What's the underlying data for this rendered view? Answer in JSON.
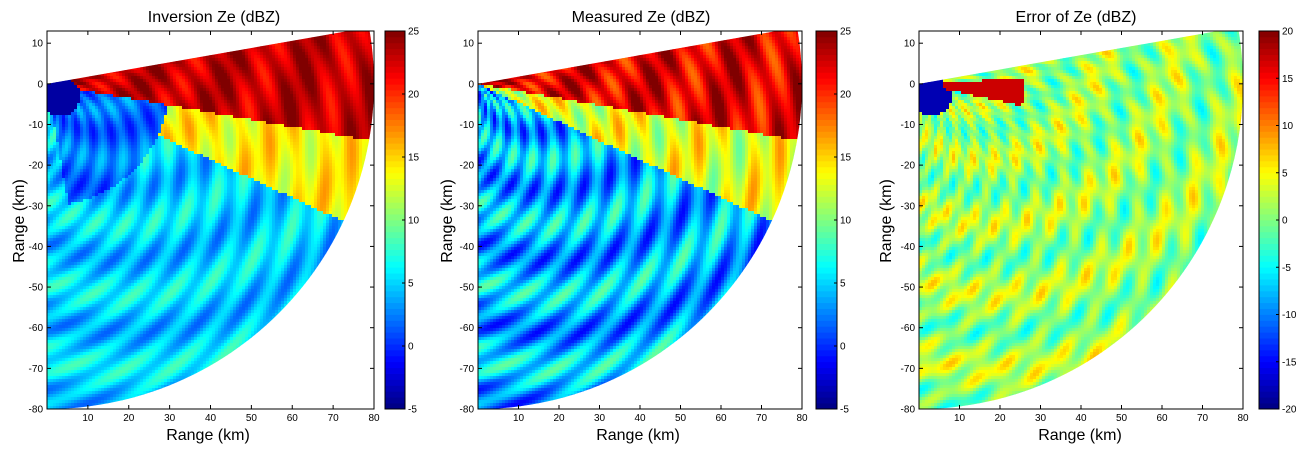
{
  "chart_data": [
    {
      "type": "heatmap",
      "title": "Inversion  Ze (dBZ)",
      "xlabel": "Range (km)",
      "ylabel": "Range (km)",
      "xlim": [
        0,
        80
      ],
      "ylim": [
        -80,
        13
      ],
      "xticks": [
        "10",
        "20",
        "30",
        "40",
        "50",
        "60",
        "70",
        "80"
      ],
      "yticks": [
        "10",
        "0",
        "-10",
        "-20",
        "-30",
        "-40",
        "-50",
        "-60",
        "-70",
        "-80"
      ],
      "colorbar": {
        "range": [
          -5,
          25
        ],
        "ticks": [
          "25",
          "20",
          "15",
          "10",
          "5",
          "0",
          "-5"
        ]
      },
      "sector": {
        "radius_km": 80,
        "top_angle_deg": 10,
        "bottom_angle_deg": -90
      },
      "regions": [
        {
          "desc": "near-radar blue blob",
          "center": [
            3,
            -3
          ],
          "value": -3
        },
        {
          "desc": "strong upper band",
          "azimuth_deg": [
            -10,
            9
          ],
          "value": 23
        },
        {
          "desc": "transition band",
          "azimuth_deg": [
            -25,
            -10
          ],
          "value": 14
        },
        {
          "desc": "lower sector",
          "azimuth_deg": [
            -90,
            -25
          ],
          "value": 5
        }
      ]
    },
    {
      "type": "heatmap",
      "title": "Measured  Ze (dBZ)",
      "xlabel": "Range (km)",
      "ylabel": "Range (km)",
      "xlim": [
        0,
        80
      ],
      "ylim": [
        -80,
        13
      ],
      "xticks": [
        "10",
        "20",
        "30",
        "40",
        "50",
        "60",
        "70",
        "80"
      ],
      "yticks": [
        "10",
        "0",
        "-10",
        "-20",
        "-30",
        "-40",
        "-50",
        "-60",
        "-70",
        "-80"
      ],
      "colorbar": {
        "range": [
          -5,
          25
        ],
        "ticks": [
          "25",
          "20",
          "15",
          "10",
          "5",
          "0",
          "-5"
        ]
      },
      "sector": {
        "radius_km": 80,
        "top_angle_deg": 10,
        "bottom_angle_deg": -90
      },
      "regions": [
        {
          "desc": "strong upper band",
          "azimuth_deg": [
            -10,
            9
          ],
          "value": 22
        },
        {
          "desc": "transition band",
          "azimuth_deg": [
            -25,
            -10
          ],
          "value": 13
        },
        {
          "desc": "lower sector",
          "azimuth_deg": [
            -90,
            -25
          ],
          "value": 4
        }
      ]
    },
    {
      "type": "heatmap",
      "title": "Error of Ze (dBZ)",
      "xlabel": "Range (km)",
      "ylabel": "Range (km)",
      "xlim": [
        0,
        80
      ],
      "ylim": [
        -80,
        13
      ],
      "xticks": [
        "10",
        "20",
        "30",
        "40",
        "50",
        "60",
        "70",
        "80"
      ],
      "yticks": [
        "10",
        "0",
        "-10",
        "-20",
        "-30",
        "-40",
        "-50",
        "-60",
        "-70",
        "-80"
      ],
      "colorbar": {
        "range": [
          -20,
          20
        ],
        "ticks": [
          "20",
          "15",
          "10",
          "5",
          "0",
          "-5",
          "-10",
          "-15",
          "-20"
        ]
      },
      "sector": {
        "radius_km": 80,
        "top_angle_deg": 10,
        "bottom_angle_deg": -90
      },
      "regions": [
        {
          "desc": "near-radar blue blob",
          "center": [
            3,
            -3
          ],
          "value": -18
        },
        {
          "desc": "red streak near radar",
          "center": [
            15,
            -2
          ],
          "value": 18
        },
        {
          "desc": "background",
          "azimuth_deg": [
            -90,
            10
          ],
          "value": 1
        }
      ]
    }
  ]
}
